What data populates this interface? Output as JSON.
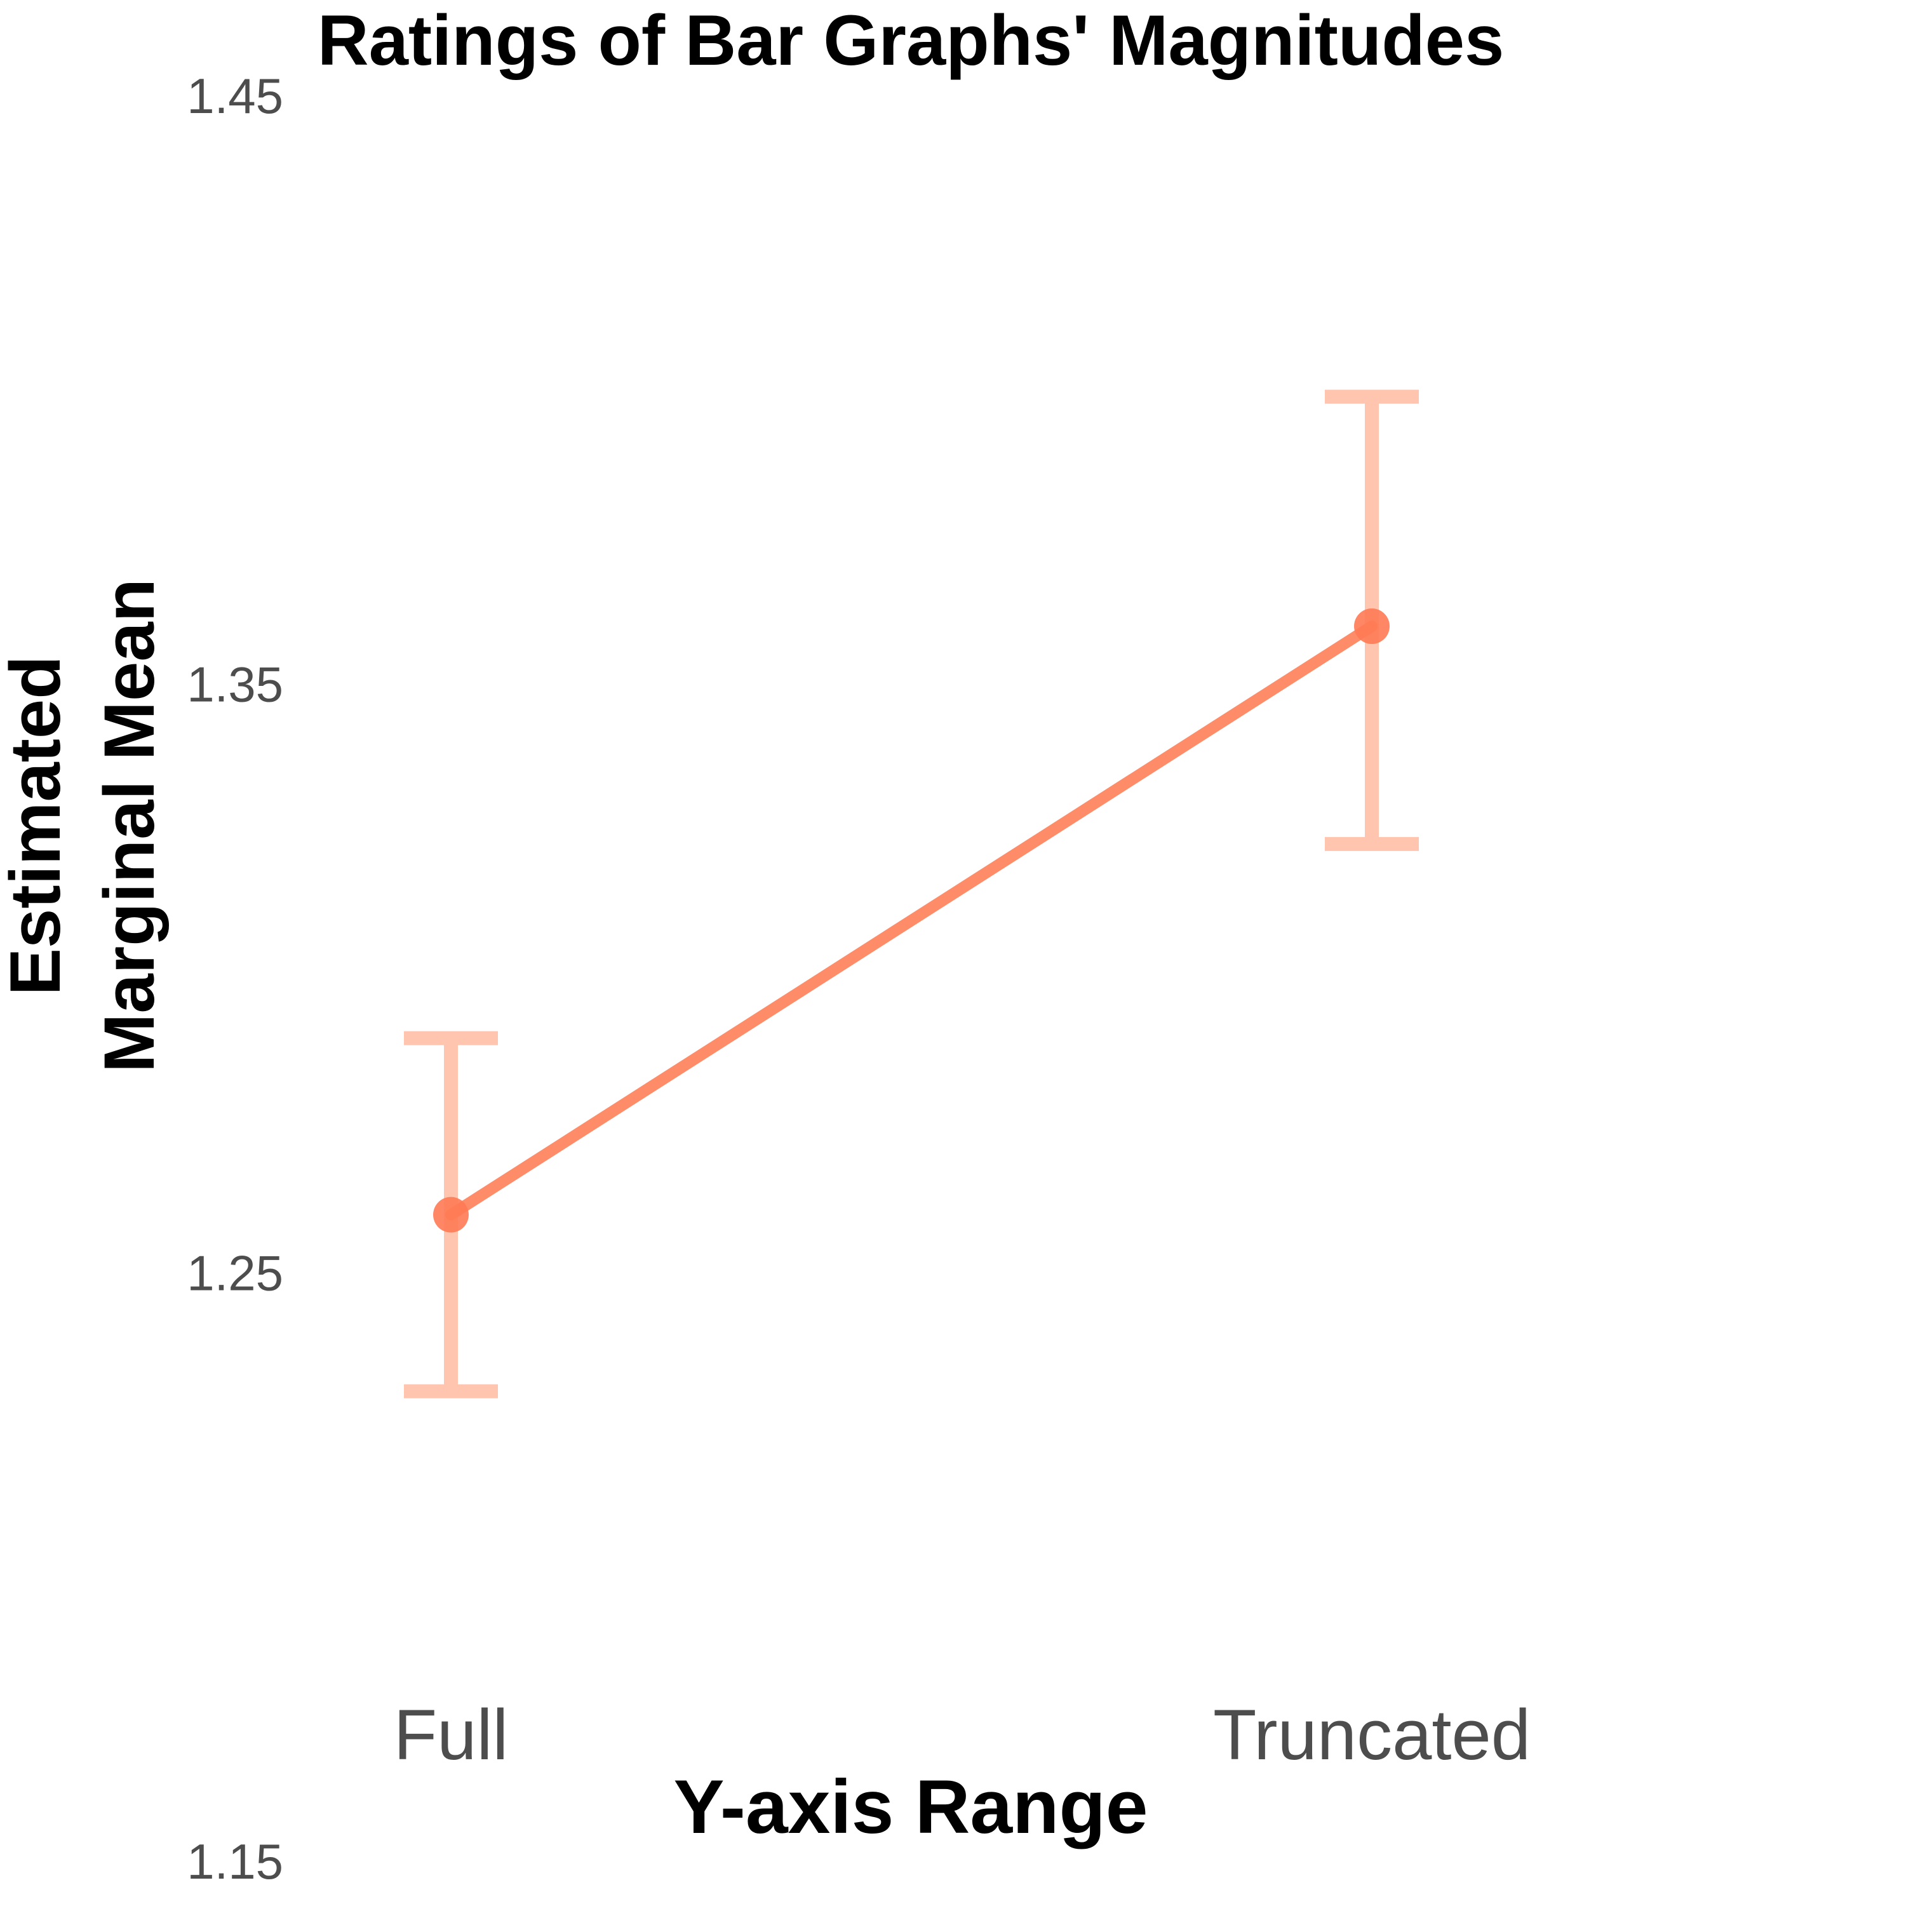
{
  "chart_data": {
    "type": "line",
    "title": "Ratings of Bar Graphs' Magnitudes",
    "xlabel": "Y-axis Range",
    "ylabel_lines": [
      "Estimated",
      "Marginal Mean"
    ],
    "categories": [
      "Full",
      "Truncated"
    ],
    "series": [
      {
        "values": [
          1.26,
          1.36
        ],
        "ci_lower": [
          1.23,
          1.323
        ],
        "ci_upper": [
          1.29,
          1.399
        ],
        "color": "#ff8c69"
      }
    ],
    "ylim": [
      1.15,
      1.45
    ],
    "yticks": [
      "1.15",
      "1.25",
      "1.35",
      "1.45"
    ],
    "grid": false,
    "legend": "none"
  },
  "colors": {
    "line": "#ff8c69",
    "errorbar": "#ffa07a",
    "point": "#ff7a55"
  }
}
